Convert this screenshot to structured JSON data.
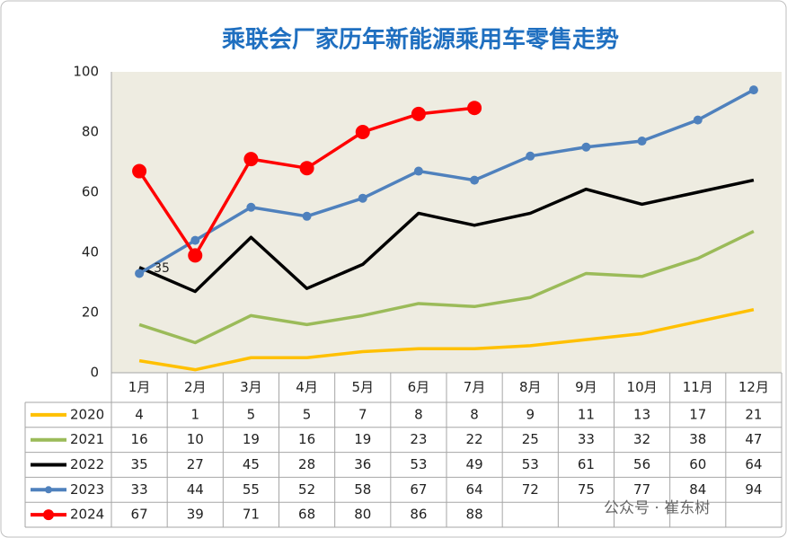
{
  "chart_data": {
    "type": "line",
    "title": "乘联会厂家历年新能源乘用车零售走势",
    "categories": [
      "1月",
      "2月",
      "3月",
      "4月",
      "5月",
      "6月",
      "7月",
      "8月",
      "9月",
      "10月",
      "11月",
      "12月"
    ],
    "ylim": [
      0,
      100
    ],
    "yticks": [
      0,
      20,
      40,
      60,
      80,
      100
    ],
    "grid": false,
    "series": [
      {
        "name": "2020",
        "color": "#ffc000",
        "marker": false,
        "values": [
          4,
          1,
          5,
          5,
          7,
          8,
          8,
          9,
          11,
          13,
          17,
          21
        ]
      },
      {
        "name": "2021",
        "color": "#9bbb59",
        "marker": false,
        "values": [
          16,
          10,
          19,
          16,
          19,
          23,
          22,
          25,
          33,
          32,
          38,
          47
        ]
      },
      {
        "name": "2022",
        "color": "#000000",
        "marker": false,
        "values": [
          35,
          27,
          45,
          28,
          36,
          53,
          49,
          53,
          61,
          56,
          60,
          64
        ]
      },
      {
        "name": "2023",
        "color": "#4f81bd",
        "marker": true,
        "values": [
          33,
          44,
          55,
          52,
          58,
          67,
          64,
          72,
          75,
          77,
          84,
          94
        ]
      },
      {
        "name": "2024",
        "color": "#ff0000",
        "marker": true,
        "values": [
          67,
          39,
          71,
          68,
          80,
          86,
          88,
          null,
          null,
          null,
          null,
          null
        ]
      }
    ],
    "watermark": "公众号 · 崔东树"
  }
}
